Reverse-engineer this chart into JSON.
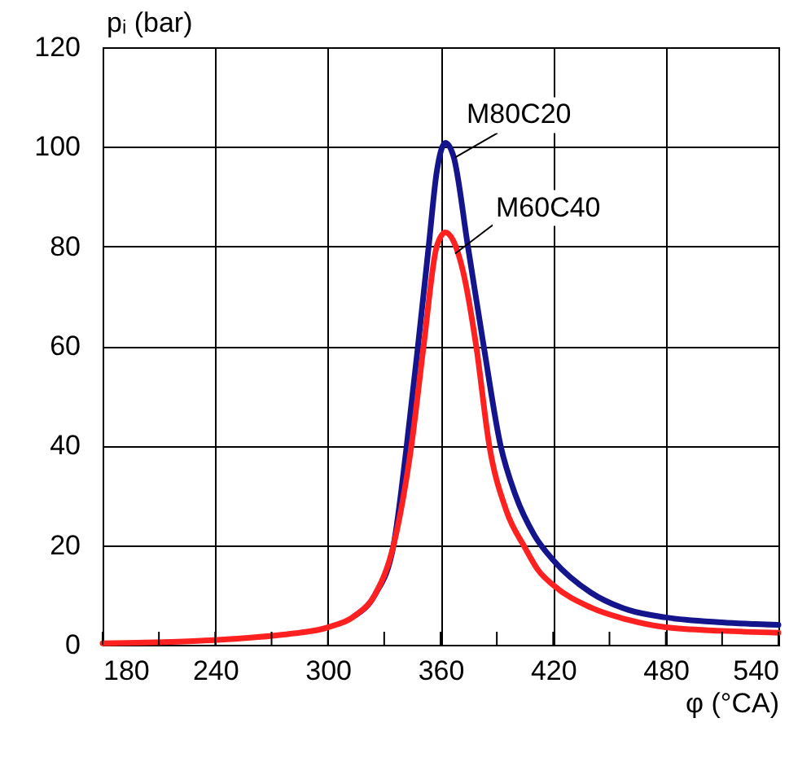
{
  "chart_data": {
    "type": "line",
    "xlabel": "φ (°CA)",
    "ylabel": "pᵢ (bar)",
    "xlim": [
      180,
      540
    ],
    "ylim": [
      0,
      120
    ],
    "xticks": [
      180,
      {
        "value": 210,
        "label": null
      },
      240,
      {
        "value": 270,
        "label": null
      },
      300,
      {
        "value": 330,
        "label": null
      },
      360,
      {
        "value": 390,
        "label": null
      },
      420,
      {
        "value": 450,
        "label": null
      },
      480,
      {
        "value": 510,
        "label": null
      },
      540
    ],
    "yticks": [
      0,
      20,
      40,
      60,
      80,
      100,
      120
    ],
    "grid": true,
    "legend": false,
    "marker": "none",
    "line_style": "solid",
    "series": [
      {
        "name": "M80C20",
        "color": "#14148c",
        "x": [
          315,
          325,
          335,
          342,
          348,
          353.7,
          358,
          362.6,
          367,
          374.6,
          383,
          392,
          400,
          410,
          420,
          440,
          460,
          480,
          510,
          540
        ],
        "values": [
          6,
          10,
          20,
          40,
          60,
          80,
          95,
          100.8,
          98,
          80,
          60,
          40,
          30,
          22,
          17,
          10.5,
          7,
          5.5,
          4.5,
          4
        ]
      },
      {
        "name": "M60C40",
        "color": "#ff2020",
        "x": [
          180,
          220,
          250,
          280,
          300,
          315,
          325,
          335,
          344.5,
          351,
          358,
          362.6,
          367,
          372,
          379,
          386,
          395,
          405,
          412,
          420,
          440,
          460,
          480,
          510,
          540
        ],
        "values": [
          0.3,
          0.6,
          1.2,
          2.2,
          3.5,
          6,
          10,
          20,
          40,
          60,
          80,
          82.8,
          81,
          75,
          60,
          40,
          27,
          19.5,
          15,
          12,
          7.5,
          5,
          3.5,
          2.8,
          2.4
        ]
      }
    ]
  }
}
